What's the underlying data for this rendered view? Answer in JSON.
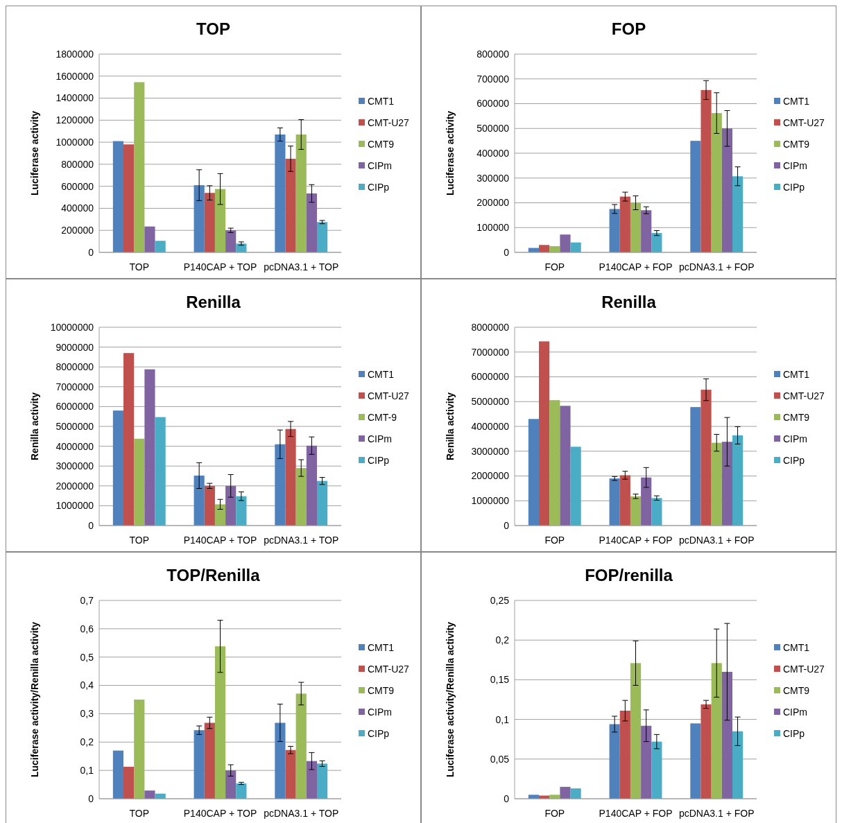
{
  "chart_data": [
    {
      "type": "bar",
      "title": "TOP",
      "ylabel": "Luciferase activity",
      "categories": [
        "TOP",
        "P140CAP + TOP",
        "pcDNA3.1 + TOP"
      ],
      "ylim": [
        0,
        1800000
      ],
      "yticks": [
        0,
        200000,
        400000,
        600000,
        800000,
        1000000,
        1200000,
        1400000,
        1600000,
        1800000
      ],
      "grid": "y",
      "legend": "right",
      "series": [
        {
          "name": "CMT1",
          "color": "#4f81bd",
          "values": [
            1010000,
            610000,
            1070000
          ],
          "errors": [
            null,
            140000,
            60000
          ]
        },
        {
          "name": "CMT-U27",
          "color": "#c0504d",
          "values": [
            980000,
            540000,
            850000
          ],
          "errors": [
            null,
            65000,
            115000
          ]
        },
        {
          "name": "CMT9",
          "color": "#9bbb59",
          "values": [
            1545000,
            575000,
            1070000
          ],
          "errors": [
            null,
            140000,
            135000
          ]
        },
        {
          "name": "CIPm",
          "color": "#8064a2",
          "values": [
            235000,
            200000,
            535000
          ],
          "errors": [
            null,
            20000,
            80000
          ]
        },
        {
          "name": "CIPp",
          "color": "#4bacc6",
          "values": [
            105000,
            80000,
            275000
          ],
          "errors": [
            null,
            15000,
            15000
          ]
        }
      ]
    },
    {
      "type": "bar",
      "title": "FOP",
      "ylabel": "Luciferase activity",
      "categories": [
        "FOP",
        "P140CAP + FOP",
        "pcDNA3.1 + FOP"
      ],
      "ylim": [
        0,
        800000
      ],
      "yticks": [
        0,
        100000,
        200000,
        300000,
        400000,
        500000,
        600000,
        700000,
        800000
      ],
      "grid": "y",
      "legend": "right",
      "series": [
        {
          "name": "CMT1",
          "color": "#4f81bd",
          "values": [
            18000,
            175000,
            450000
          ],
          "errors": [
            null,
            18000,
            null
          ]
        },
        {
          "name": "CMT-U27",
          "color": "#c0504d",
          "values": [
            30000,
            225000,
            655000
          ],
          "errors": [
            null,
            18000,
            38000
          ]
        },
        {
          "name": "CMT9",
          "color": "#9bbb59",
          "values": [
            25000,
            200000,
            562000
          ],
          "errors": [
            null,
            28000,
            82000
          ]
        },
        {
          "name": "CIPm",
          "color": "#8064a2",
          "values": [
            72000,
            170000,
            500000
          ],
          "errors": [
            null,
            14000,
            72000
          ]
        },
        {
          "name": "CIPp",
          "color": "#4bacc6",
          "values": [
            40000,
            78000,
            307000
          ],
          "errors": [
            null,
            10000,
            38000
          ]
        }
      ]
    },
    {
      "type": "bar",
      "title": "Renilla",
      "ylabel": "Renilla activity",
      "categories": [
        "TOP",
        "P140CAP + TOP",
        "pcDNA3.1 + TOP"
      ],
      "ylim": [
        0,
        10000000
      ],
      "yticks": [
        0,
        1000000,
        2000000,
        3000000,
        4000000,
        5000000,
        6000000,
        7000000,
        8000000,
        9000000,
        10000000
      ],
      "grid": "y",
      "legend": "right",
      "series": [
        {
          "name": "CMT1",
          "color": "#4f81bd",
          "values": [
            5800000,
            2520000,
            4100000
          ],
          "errors": [
            null,
            650000,
            720000
          ]
        },
        {
          "name": "CMT-U27",
          "color": "#c0504d",
          "values": [
            8700000,
            2000000,
            4870000
          ],
          "errors": [
            null,
            130000,
            380000
          ]
        },
        {
          "name": "CMT-9",
          "color": "#9bbb59",
          "values": [
            4380000,
            1070000,
            2900000
          ],
          "errors": [
            null,
            250000,
            420000
          ]
        },
        {
          "name": "CIPm",
          "color": "#8064a2",
          "values": [
            7880000,
            2000000,
            4030000
          ],
          "errors": [
            null,
            570000,
            440000
          ]
        },
        {
          "name": "CIPp",
          "color": "#4bacc6",
          "values": [
            5470000,
            1480000,
            2250000
          ],
          "errors": [
            null,
            220000,
            180000
          ]
        }
      ]
    },
    {
      "type": "bar",
      "title": "Renilla",
      "ylabel": "Renilla activity",
      "categories": [
        "FOP",
        "P140CAP + FOP",
        "pcDNA3.1 + FOP"
      ],
      "ylim": [
        0,
        8000000
      ],
      "yticks": [
        0,
        1000000,
        2000000,
        3000000,
        4000000,
        5000000,
        6000000,
        7000000,
        8000000
      ],
      "grid": "y",
      "legend": "right",
      "series": [
        {
          "name": "CMT1",
          "color": "#4f81bd",
          "values": [
            4300000,
            1900000,
            4780000
          ],
          "errors": [
            null,
            80000,
            null
          ]
        },
        {
          "name": "CMT-U27",
          "color": "#c0504d",
          "values": [
            7430000,
            2030000,
            5480000
          ],
          "errors": [
            null,
            160000,
            440000
          ]
        },
        {
          "name": "CMT9",
          "color": "#9bbb59",
          "values": [
            5060000,
            1180000,
            3340000
          ],
          "errors": [
            null,
            90000,
            340000
          ]
        },
        {
          "name": "CIPm",
          "color": "#8064a2",
          "values": [
            4830000,
            1940000,
            3380000
          ],
          "errors": [
            null,
            400000,
            980000
          ]
        },
        {
          "name": "CIPp",
          "color": "#4bacc6",
          "values": [
            3180000,
            1110000,
            3640000
          ],
          "errors": [
            null,
            90000,
            350000
          ]
        }
      ]
    },
    {
      "type": "bar",
      "title": "TOP/Renilla",
      "ylabel": "Luciferase activity/Renilla activity",
      "categories": [
        "TOP",
        "P140CAP + TOP",
        "pcDNA3.1 + TOP"
      ],
      "ylim": [
        0,
        0.7
      ],
      "yticks": [
        0,
        {
          "value": 0.1,
          "label": "0,1"
        },
        {
          "value": 0.2,
          "label": "0,2"
        },
        {
          "value": 0.3,
          "label": "0,3"
        },
        {
          "value": 0.4,
          "label": "0,4"
        },
        {
          "value": 0.5,
          "label": "0,5"
        },
        {
          "value": 0.6,
          "label": "0,6"
        },
        {
          "value": 0.7,
          "label": "0,7"
        }
      ],
      "grid": "y",
      "legend": "right",
      "series": [
        {
          "name": "CMT1",
          "color": "#4f81bd",
          "values": [
            0.17,
            0.242,
            0.268
          ],
          "errors": [
            null,
            0.015,
            0.066
          ]
        },
        {
          "name": "CMT-U27",
          "color": "#c0504d",
          "values": [
            0.113,
            0.268,
            0.172
          ],
          "errors": [
            null,
            0.02,
            0.013
          ]
        },
        {
          "name": "CMT9",
          "color": "#9bbb59",
          "values": [
            0.35,
            0.538,
            0.371
          ],
          "errors": [
            null,
            0.092,
            0.04
          ]
        },
        {
          "name": "CIPm",
          "color": "#8064a2",
          "values": [
            0.029,
            0.1,
            0.133
          ],
          "errors": [
            null,
            0.02,
            0.03
          ]
        },
        {
          "name": "CIPp",
          "color": "#4bacc6",
          "values": [
            0.018,
            0.054,
            0.124
          ],
          "errors": [
            null,
            0.004,
            0.01
          ]
        }
      ]
    },
    {
      "type": "bar",
      "title": "FOP/renilla",
      "ylabel": "Luciferase activity/Renilla activity",
      "categories": [
        "FOP",
        "P140CAP + FOP",
        "pcDNA3.1 + FOP"
      ],
      "ylim": [
        0,
        0.25
      ],
      "yticks": [
        0,
        {
          "value": 0.05,
          "label": "0,05"
        },
        {
          "value": 0.1,
          "label": "0,1"
        },
        {
          "value": 0.15,
          "label": "0,15"
        },
        {
          "value": 0.2,
          "label": "0,2"
        },
        {
          "value": 0.25,
          "label": "0,25"
        }
      ],
      "grid": "y",
      "legend": "right",
      "series": [
        {
          "name": "CMT1",
          "color": "#4f81bd",
          "values": [
            0.005,
            0.094,
            0.095
          ],
          "errors": [
            null,
            0.01,
            null
          ]
        },
        {
          "name": "CMT-U27",
          "color": "#c0504d",
          "values": [
            0.004,
            0.111,
            0.119
          ],
          "errors": [
            null,
            0.013,
            0.005
          ]
        },
        {
          "name": "CMT9",
          "color": "#9bbb59",
          "values": [
            0.005,
            0.171,
            0.171
          ],
          "errors": [
            null,
            0.028,
            0.043
          ]
        },
        {
          "name": "CIPm",
          "color": "#8064a2",
          "values": [
            0.015,
            0.092,
            0.16
          ],
          "errors": [
            null,
            0.02,
            0.061
          ]
        },
        {
          "name": "CIPp",
          "color": "#4bacc6",
          "values": [
            0.013,
            0.072,
            0.085
          ],
          "errors": [
            null,
            0.009,
            0.018
          ]
        }
      ]
    }
  ]
}
